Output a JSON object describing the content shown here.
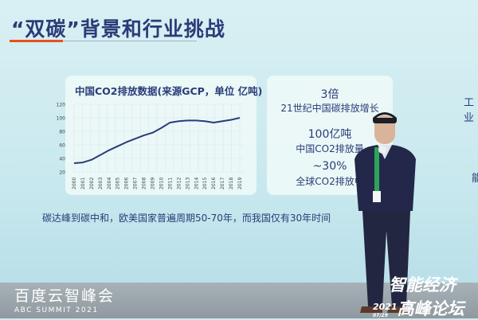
{
  "slide": {
    "title": "“双碳”背景和行业挑战",
    "bottom_note": "碳达峰到碳中和，欧美国家普遍周期50-70年，而我国仅有30年时间",
    "stats": [
      {
        "value": "3倍",
        "label": "21世纪中国碳排放增长"
      },
      {
        "value": "100亿吨",
        "label": "中国CO2排放量"
      },
      {
        "value": "~30%",
        "label": "全球CO2排放中"
      }
    ],
    "right_edge_fragments": [
      "工业",
      "能"
    ],
    "accent_color": "#e8501e",
    "text_color": "#2a3c78"
  },
  "chart_data": {
    "type": "line",
    "title": "中国CO2排放数据(来源GCP，单位 亿吨)",
    "x": [
      "2000",
      "2001",
      "2002",
      "2003",
      "2004",
      "2005",
      "2006",
      "2007",
      "2008",
      "2009",
      "2010",
      "2011",
      "2012",
      "2013",
      "2014",
      "2015",
      "2016",
      "2017",
      "2018",
      "2019"
    ],
    "values": [
      33,
      34,
      38,
      45,
      52,
      58,
      64,
      69,
      74,
      78,
      85,
      93,
      95,
      96,
      96,
      95,
      93,
      95,
      97,
      100
    ],
    "yticks": [
      20,
      40,
      60,
      80,
      100,
      120
    ],
    "ylim": [
      20,
      120
    ],
    "grid": true,
    "line_color": "#2a3c78"
  },
  "event": {
    "left_logo_cn": "百度云智峰会",
    "left_logo_en": "ABC SUMMIT 2021",
    "right_logo_line1": "智能经济",
    "right_logo_year": "2021",
    "right_logo_date": "07/29",
    "right_logo_line2": "高峰论坛"
  }
}
